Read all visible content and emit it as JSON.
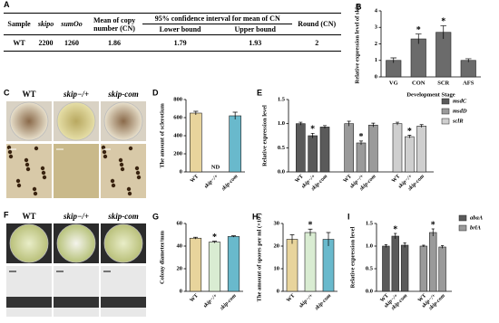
{
  "table": {
    "panel": "A",
    "headers": [
      "Sample",
      "skipo",
      "sumOo",
      "Mean of copy number (CN)",
      "95% confidence interval for mean of CN",
      "Round (CN)"
    ],
    "subheaders": [
      "Lower bound",
      "Upper bound"
    ],
    "rows": [
      [
        "WT",
        2200,
        1260,
        1.86,
        1.79,
        1.93,
        2
      ]
    ]
  },
  "photos": [
    {
      "panel": "C",
      "labels": [
        "WT",
        "skip−/+",
        "skip-com"
      ]
    },
    {
      "panel": "F",
      "labels": [
        "WT",
        "skip−/+",
        "skip-com"
      ]
    }
  ],
  "chart_data": [
    {
      "type": "bar",
      "panel": "B",
      "ylabel": "Relative expression level of skip",
      "xlabel": "Development Stage",
      "categories": [
        "VG",
        "CON",
        "SCR",
        "AFS"
      ],
      "values": [
        1.0,
        2.3,
        2.7,
        1.0
      ],
      "errors": [
        0.15,
        0.3,
        0.4,
        0.1
      ],
      "significance": [
        null,
        "*",
        "*",
        null
      ],
      "colors": [
        "#6b6b6b",
        "#6b6b6b",
        "#6b6b6b",
        "#6b6b6b"
      ],
      "ylim": [
        0,
        4
      ],
      "yticks": [
        0,
        1,
        2,
        3,
        4
      ]
    },
    {
      "type": "bar",
      "panel": "D",
      "ylabel": "The amount of sclerotium",
      "categories": [
        "WT",
        "skip−/+",
        "skip-com"
      ],
      "values": [
        650,
        null,
        620
      ],
      "errors": [
        20,
        null,
        40
      ],
      "annotations": [
        null,
        "ND",
        null
      ],
      "colors": [
        "#e8d49c",
        "#d9ecd2",
        "#69b9cc"
      ],
      "ylim": [
        0,
        800
      ],
      "yticks": [
        0,
        200,
        400,
        600,
        800
      ]
    },
    {
      "type": "grouped",
      "panel": "E",
      "ylabel": "Relative expression level",
      "categories": [
        "WT",
        "skip−/+",
        "skip-com"
      ],
      "series": [
        {
          "name": "msdC",
          "color": "#5a5a5a",
          "values": [
            1.0,
            0.75,
            0.93
          ],
          "errors": [
            0.03,
            0.05,
            0.03
          ],
          "significance": [
            null,
            "*",
            null
          ]
        },
        {
          "name": "msdD",
          "color": "#9a9a9a",
          "values": [
            1.0,
            0.6,
            0.97
          ],
          "errors": [
            0.05,
            0.04,
            0.04
          ],
          "significance": [
            null,
            "*",
            null
          ]
        },
        {
          "name": "sclR",
          "color": "#cfcfcf",
          "values": [
            1.0,
            0.73,
            0.95
          ],
          "errors": [
            0.03,
            0.03,
            0.03
          ],
          "significance": [
            null,
            "*",
            null
          ]
        }
      ],
      "ylim": [
        0,
        1.5
      ],
      "yticks": [
        {
          "value": 0,
          "label": "0.0"
        },
        0.5,
        {
          "value": 1,
          "label": "1.0"
        },
        1.5
      ]
    },
    {
      "type": "bar",
      "panel": "G",
      "ylabel": "Colony diameter/mm",
      "categories": [
        "WT",
        "skip−/+",
        "skip-com"
      ],
      "values": [
        47,
        43.5,
        48.5
      ],
      "errors": [
        0.8,
        0.8,
        0.6
      ],
      "significance": [
        null,
        "*",
        null
      ],
      "colors": [
        "#e8d49c",
        "#d9ecd2",
        "#69b9cc"
      ],
      "ylim": [
        0,
        60
      ],
      "yticks": [
        0,
        20,
        40,
        60
      ]
    },
    {
      "type": "bar",
      "panel": "H",
      "ylabel": "The amount of spores per ml (×10⁶)",
      "categories": [
        "WT",
        "skip−/+",
        "skip-com"
      ],
      "values": [
        23,
        26,
        23
      ],
      "errors": [
        2,
        1.5,
        3
      ],
      "significance": [
        null,
        "*",
        null
      ],
      "colors": [
        "#e8d49c",
        "#d9ecd2",
        "#69b9cc"
      ],
      "ylim": [
        0,
        30
      ],
      "yticks": [
        0,
        10,
        20,
        30
      ]
    },
    {
      "type": "grouped",
      "panel": "I",
      "ylabel": "Relative expression level",
      "categories": [
        "WT",
        "skip−/+",
        "skip-com"
      ],
      "series": [
        {
          "name": "abaA",
          "color": "#5a5a5a",
          "values": [
            1.0,
            1.22,
            1.02
          ],
          "errors": [
            0.03,
            0.06,
            0.05
          ],
          "significance": [
            null,
            "*",
            null
          ]
        },
        {
          "name": "brlA",
          "color": "#9a9a9a",
          "values": [
            1.0,
            1.3,
            0.98
          ],
          "errors": [
            0.02,
            0.08,
            0.03
          ],
          "significance": [
            null,
            "*",
            null
          ]
        }
      ],
      "ylim": [
        0,
        1.5
      ],
      "yticks": [
        {
          "value": 0,
          "label": "0.0"
        },
        0.5,
        {
          "value": 1,
          "label": "1.0"
        },
        1.5
      ]
    }
  ]
}
